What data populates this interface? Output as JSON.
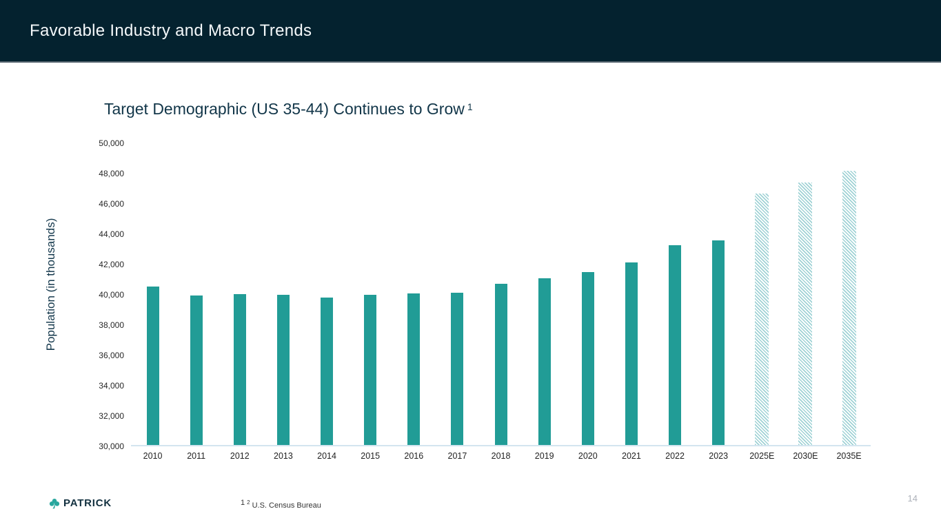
{
  "header": {
    "title": "Favorable Industry and Macro Trends"
  },
  "chart": {
    "title": "Target Demographic (US 35-44) Continues to Grow",
    "title_superscript": "1",
    "y_axis_label": "Population (in thousands)"
  },
  "chart_data": {
    "type": "bar",
    "title": "Target Demographic (US 35-44) Continues to Grow",
    "ylabel": "Population (in thousands)",
    "xlabel": "",
    "ylim": [
      30000,
      50000
    ],
    "ytick_step": 2000,
    "ytick_labels": [
      "50,000",
      "48,000",
      "46,000",
      "44,000",
      "42,000",
      "40,000",
      "38,000",
      "36,000",
      "34,000",
      "32,000",
      "30,000"
    ],
    "categories": [
      "2010",
      "2011",
      "2012",
      "2013",
      "2014",
      "2015",
      "2016",
      "2017",
      "2018",
      "2019",
      "2020",
      "2021",
      "2022",
      "2023",
      "2025E",
      "2030E",
      "2035E"
    ],
    "values": [
      40450,
      39850,
      39950,
      39900,
      39750,
      39900,
      40000,
      40050,
      40650,
      41000,
      41400,
      42050,
      43200,
      43500,
      46600,
      47300,
      48100
    ],
    "estimated": [
      false,
      false,
      false,
      false,
      false,
      false,
      false,
      false,
      false,
      false,
      false,
      false,
      false,
      false,
      true,
      true,
      true
    ],
    "bar_color": "#219c96",
    "estimate_bar_style": "diagonal-hatch-light-teal",
    "grid": false,
    "legend_position": "none"
  },
  "footer": {
    "logo_text": "PATRICK",
    "logo_icon": "shamrock-icon",
    "footnote_sup1": "1",
    "footnote_sup2": "2",
    "footnote_text": "U.S. Census Bureau",
    "page_number": "14"
  },
  "colors": {
    "header_bg": "#04222f",
    "title_navy": "#123649",
    "bar_teal": "#219c96",
    "hatch_teal": "#9fd2d5",
    "baseline": "#d3e5ef",
    "page_number_gray": "#adb1ba"
  }
}
